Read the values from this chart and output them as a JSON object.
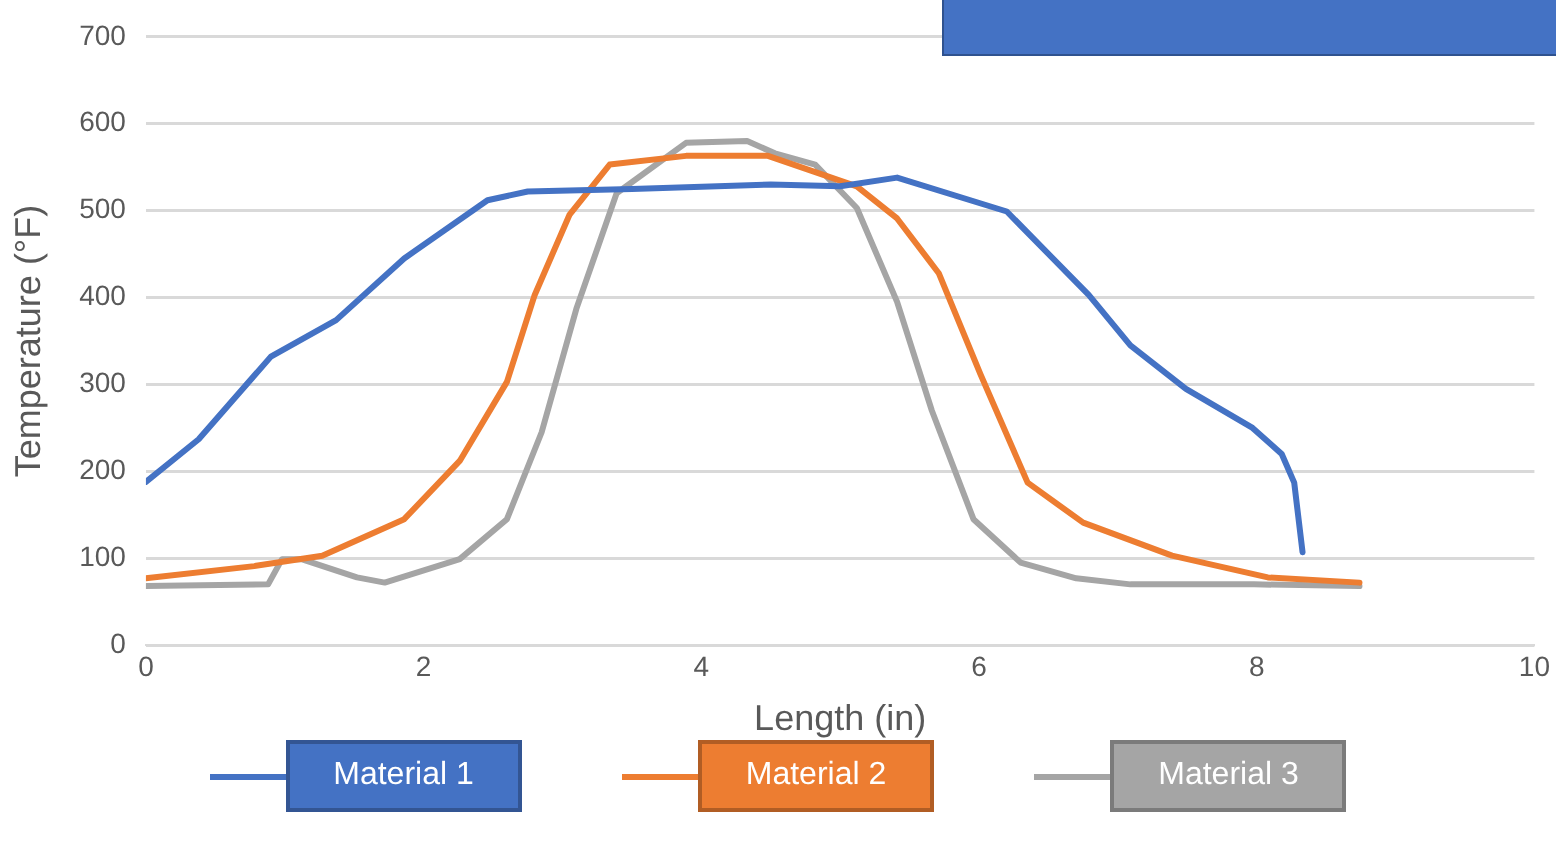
{
  "chart_data": {
    "type": "line",
    "xlabel": "Length (in)",
    "ylabel": "Temperature (°F)",
    "xlim": [
      0,
      10
    ],
    "xticks": [
      0,
      2,
      4,
      6,
      8,
      10
    ],
    "ylim": [
      0,
      700
    ],
    "yticks": [
      0,
      100,
      200,
      300,
      400,
      500,
      600,
      700
    ],
    "grid": "y",
    "legend": "bottom",
    "marker": "none",
    "line_style": "solid",
    "series": [
      {
        "name": "Material 1",
        "color": "#4472c4",
        "x": [
          0,
          0.38,
          0.9,
          1.37,
          1.86,
          2.46,
          2.75,
          3.5,
          4.5,
          5.0,
          5.41,
          6.2,
          6.79,
          7.09,
          7.49,
          7.97,
          8.18,
          8.27,
          8.33
        ],
        "values": [
          188,
          237,
          332,
          374,
          445,
          512,
          522,
          525,
          530,
          528,
          538,
          499,
          403,
          345,
          295,
          250,
          220,
          187,
          107
        ]
      },
      {
        "name": "Material 2",
        "color": "#ed7d31",
        "x": [
          0,
          0.78,
          1.27,
          1.86,
          2.26,
          2.6,
          2.8,
          3.05,
          3.34,
          3.89,
          4.48,
          5.12,
          5.41,
          5.71,
          6.01,
          6.35,
          6.75,
          7.39,
          8.08,
          8.74
        ],
        "values": [
          77,
          91,
          103,
          145,
          212,
          303,
          403,
          495,
          553,
          563,
          563,
          528,
          491,
          428,
          312,
          187,
          141,
          103,
          78,
          72
        ]
      },
      {
        "name": "Material 3",
        "color": "#a5a5a5",
        "x": [
          0,
          0.88,
          0.98,
          1.12,
          1.52,
          1.72,
          2.26,
          2.6,
          2.85,
          3.1,
          3.39,
          3.89,
          4.33,
          4.53,
          4.82,
          5.12,
          5.41,
          5.66,
          5.96,
          6.3,
          6.7,
          7.09,
          7.98,
          8.74
        ],
        "values": [
          68,
          70,
          99,
          99,
          78,
          72,
          99,
          145,
          245,
          387,
          520,
          578,
          580,
          566,
          553,
          503,
          395,
          270,
          145,
          95,
          77,
          70,
          70,
          68
        ]
      }
    ]
  }
}
